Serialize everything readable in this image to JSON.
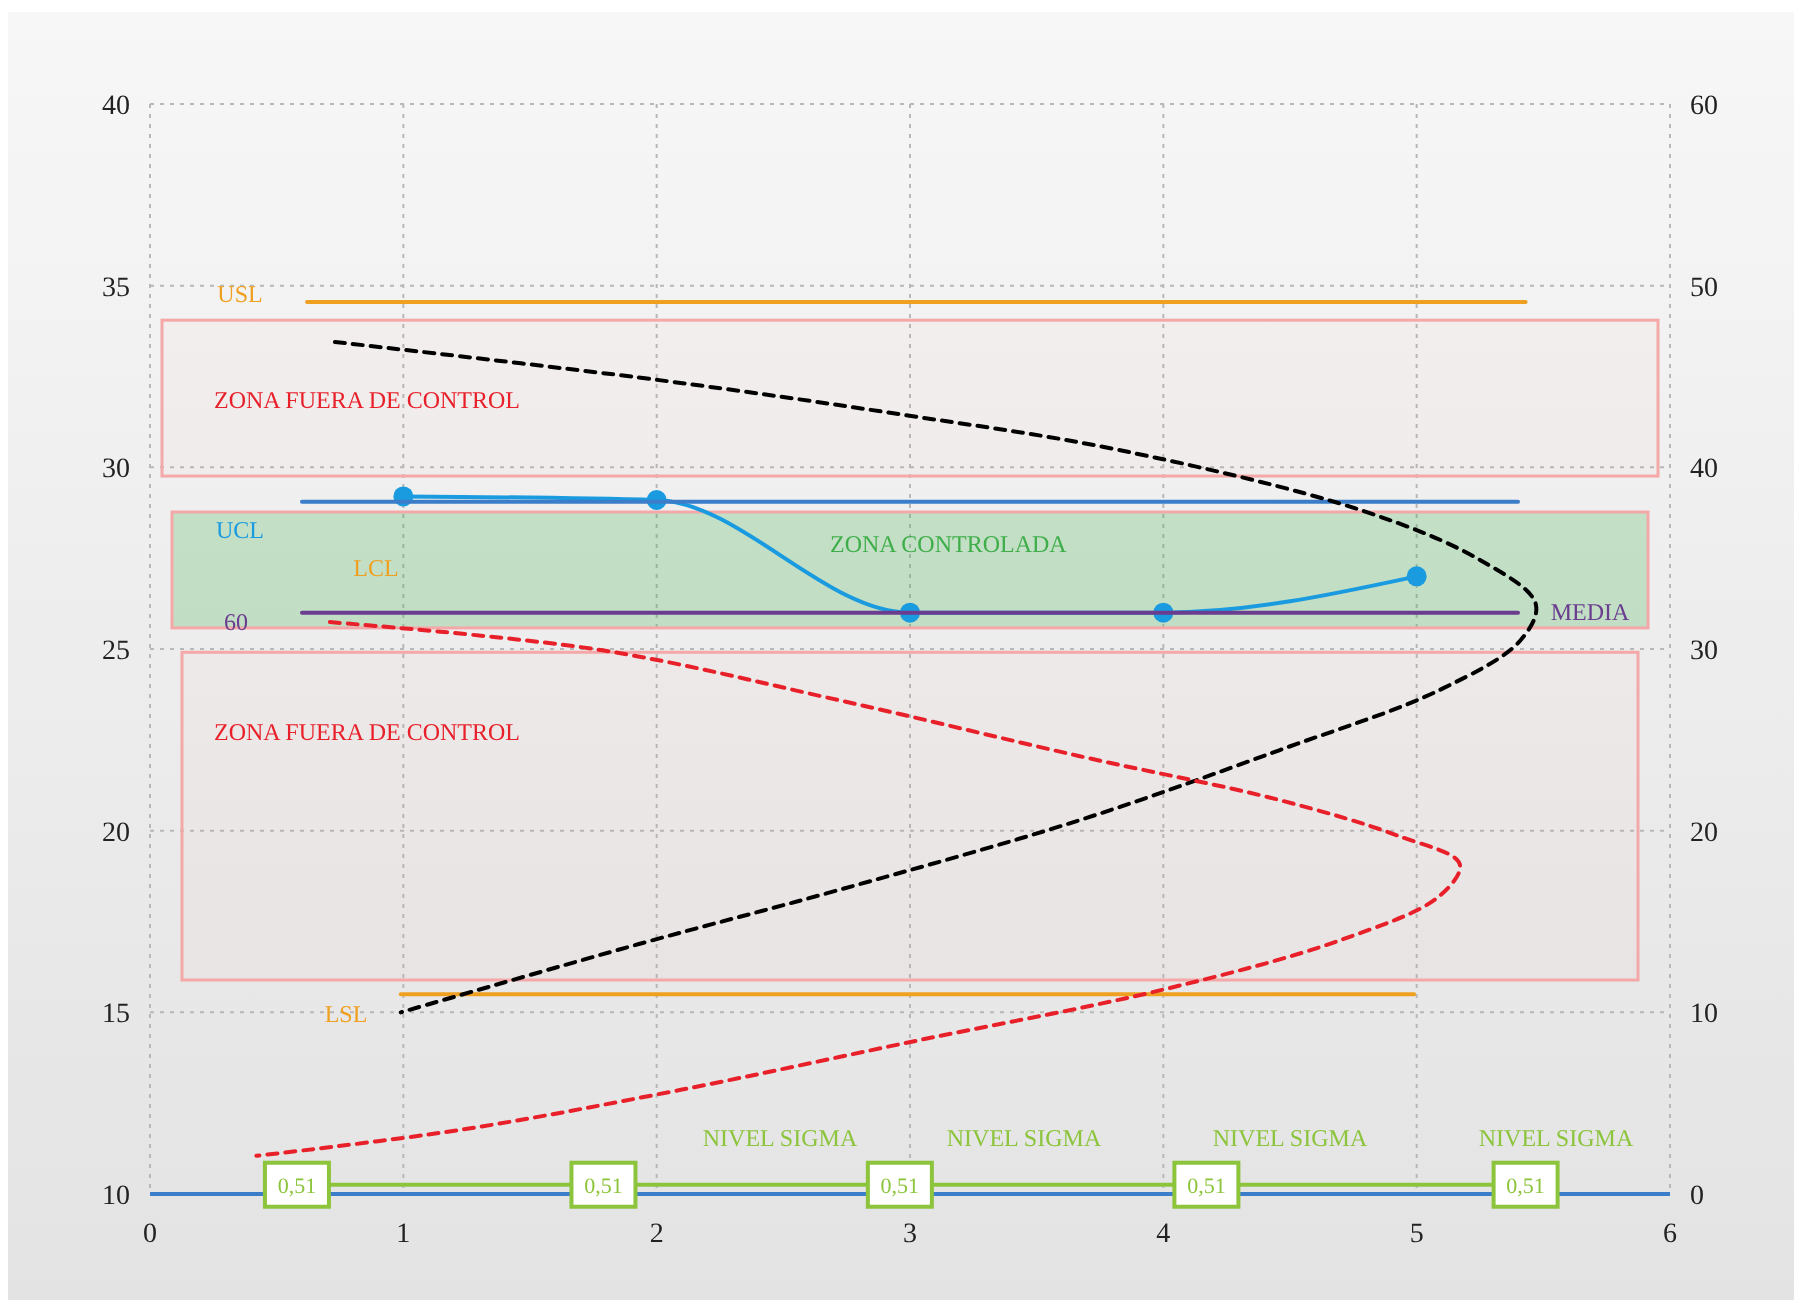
{
  "chart_data": {
    "type": "line",
    "xlim": [
      0,
      6
    ],
    "xticks": [
      0,
      1,
      2,
      3,
      4,
      5,
      6
    ],
    "ylim": [
      10,
      40
    ],
    "yticks": [
      10,
      15,
      20,
      25,
      30,
      35,
      40
    ],
    "y2lim": [
      0,
      60
    ],
    "y2ticks": [
      0,
      10,
      20,
      30,
      40,
      50,
      60
    ],
    "grid": true,
    "series": [
      {
        "color": "#1a9be0",
        "x": [
          1,
          2,
          3,
          4,
          5
        ],
        "values": [
          29.2,
          29.1,
          26,
          26,
          27
        ],
        "marker": "circle"
      },
      {
        "color": "#3b7dc8",
        "x": [
          0.6,
          5.4
        ],
        "values": [
          29.05,
          29.05
        ]
      },
      {
        "color": "#6a3d8f",
        "x": [
          0.6,
          5.4
        ],
        "values": [
          26,
          26
        ]
      },
      {
        "color": "#f0a020",
        "x": [
          0.62,
          5.43
        ],
        "values": [
          34.55,
          34.55
        ]
      },
      {
        "color": "#f0a020",
        "x": [
          0.99,
          4.99
        ],
        "values": [
          15.5,
          15.5
        ]
      },
      {
        "color": "#000000",
        "line_style": "dashed",
        "x": [
          0.73,
          2.01,
          2.96,
          3.83,
          4.78,
          5.25,
          5.47,
          5.41,
          5.09,
          4.46,
          3.67,
          2.72,
          1.93,
          0.99
        ],
        "values": [
          33.45,
          32.4,
          31.46,
          30.47,
          28.82,
          27.45,
          26.24,
          25.24,
          23.87,
          22.22,
          20.29,
          18.37,
          16.88,
          15.0
        ]
      },
      {
        "color": "#e8202a",
        "line_style": "dashed",
        "x": [
          0.71,
          1.78,
          2.72,
          3.67,
          4.46,
          4.93,
          5.17,
          5.09,
          4.7,
          3.99,
          3.04,
          2.09,
          1.22,
          0.42
        ],
        "values": [
          25.74,
          24.97,
          23.59,
          22.05,
          20.84,
          19.85,
          19.08,
          18.2,
          16.99,
          15.61,
          14.24,
          12.86,
          11.76,
          11.05
        ]
      },
      {
        "color": "#8cc43c",
        "axis": "y2",
        "marker": "square",
        "x": [
          0.58,
          1.79,
          2.96,
          4.17,
          5.43
        ],
        "values": [
          0.51,
          0.51,
          0.51,
          0.51,
          0.51
        ],
        "value_labels": [
          "0,51",
          "0,51",
          "0,51",
          "0,51",
          "0,51"
        ]
      }
    ],
    "bands": [
      {
        "axis": "y",
        "from": 29.76,
        "to": 34.05,
        "label": "ZONA FUERA DE CONTROL",
        "color": "#e8202a"
      },
      {
        "axis": "y",
        "from": 25.58,
        "to": 28.77,
        "label": "ZONA CONTROLADA",
        "color": "#3fae4a"
      },
      {
        "axis": "y",
        "from": 15.89,
        "to": 24.91,
        "label": "ZONA FUERA DE CONTROL",
        "color": "#e8202a"
      }
    ],
    "ref_lines": [
      {
        "axis": "y",
        "value": 10,
        "color": "#3b7dc8"
      }
    ],
    "annotations": [
      "USL",
      "UCL",
      "LCL",
      "60",
      "MEDIA",
      "LSL",
      "NIVEL SIGMA",
      "NIVEL SIGMA",
      "NIVEL SIGMA",
      "NIVEL SIGMA"
    ]
  }
}
